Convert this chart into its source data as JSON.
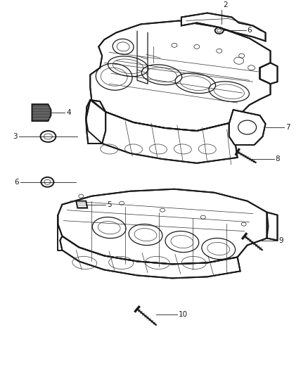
{
  "background_color": "#ffffff",
  "line_color": "#1a1a1a",
  "label_color": "#1a1a1a",
  "thin_color": "#333333",
  "fig_width": 4.38,
  "fig_height": 5.33,
  "dpi": 100,
  "lw_outer": 1.4,
  "lw_mid": 0.9,
  "lw_thin": 0.5,
  "callout_fontsize": 7.5,
  "leader_lw": 0.6
}
